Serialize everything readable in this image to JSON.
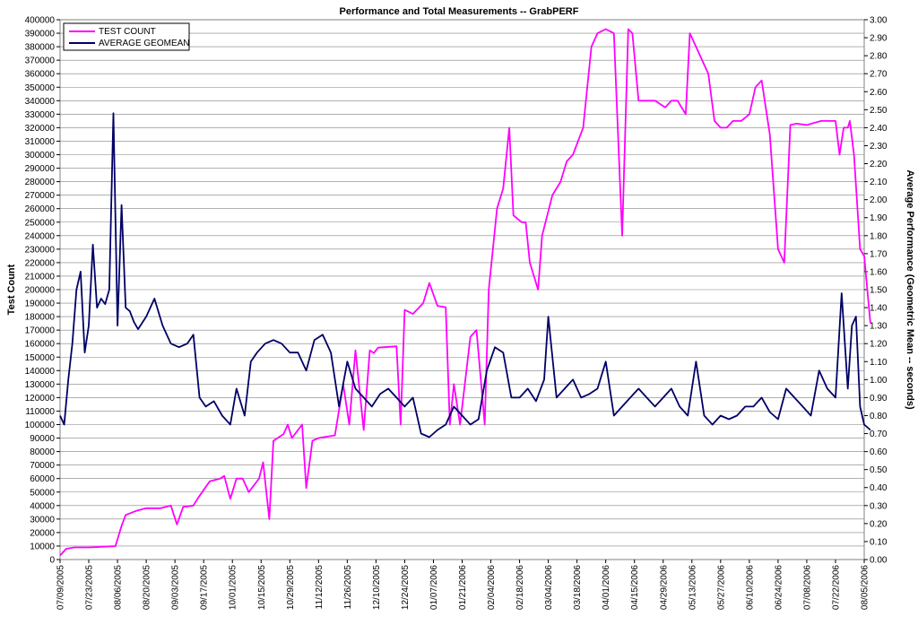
{
  "chart_data": {
    "type": "line",
    "title": "Performance and Total Measurements -- GrabPERF",
    "ylabel": "Test Count",
    "y2label": "Average Performance (Geometric Mean -- seconds)",
    "ylim": [
      0,
      400000
    ],
    "y2lim": [
      0,
      3.0
    ],
    "grid": true,
    "legend_position": "top-left",
    "y_ticks": [
      "0",
      "10000",
      "20000",
      "30000",
      "40000",
      "50000",
      "60000",
      "70000",
      "80000",
      "90000",
      "100000",
      "110000",
      "120000",
      "130000",
      "140000",
      "150000",
      "160000",
      "170000",
      "180000",
      "190000",
      "200000",
      "210000",
      "220000",
      "230000",
      "240000",
      "250000",
      "260000",
      "270000",
      "280000",
      "290000",
      "300000",
      "310000",
      "320000",
      "330000",
      "340000",
      "350000",
      "360000",
      "370000",
      "380000",
      "390000",
      "400000"
    ],
    "y2_ticks": [
      "0.00",
      "0.10",
      "0.20",
      "0.30",
      "0.40",
      "0.50",
      "0.60",
      "0.70",
      "0.80",
      "0.90",
      "1.00",
      "1.10",
      "1.20",
      "1.30",
      "1.40",
      "1.50",
      "1.60",
      "1.70",
      "1.80",
      "1.90",
      "2.00",
      "2.10",
      "2.20",
      "2.30",
      "2.40",
      "2.50",
      "2.60",
      "2.70",
      "2.80",
      "2.90",
      "3.00"
    ],
    "x_ticks": [
      "07/09/2005",
      "07/23/2005",
      "08/06/2005",
      "08/20/2005",
      "09/03/2005",
      "09/17/2005",
      "10/01/2005",
      "10/15/2005",
      "10/29/2005",
      "11/12/2005",
      "11/26/2005",
      "12/10/2005",
      "12/24/2005",
      "01/07/2006",
      "01/21/2006",
      "02/04/2006",
      "02/18/2006",
      "03/04/2006",
      "03/18/2006",
      "04/01/2006",
      "04/15/2006",
      "04/29/2006",
      "05/13/2006",
      "05/27/2006",
      "06/10/2006",
      "06/24/2006",
      "07/08/2006",
      "07/22/2006",
      "08/05/2006"
    ],
    "series": [
      {
        "name": "TEST COUNT",
        "axis": "left",
        "color": "#ff00ff",
        "x": [
          "2005-07-09",
          "2005-07-12",
          "2005-07-16",
          "2005-07-23",
          "2005-07-30",
          "2005-08-05",
          "2005-08-08",
          "2005-08-10",
          "2005-08-15",
          "2005-08-20",
          "2005-08-27",
          "2005-09-01",
          "2005-09-04",
          "2005-09-07",
          "2005-09-12",
          "2005-09-14",
          "2005-09-20",
          "2005-09-25",
          "2005-09-27",
          "2005-09-30",
          "2005-10-03",
          "2005-10-06",
          "2005-10-09",
          "2005-10-14",
          "2005-10-16",
          "2005-10-19",
          "2005-10-21",
          "2005-10-26",
          "2005-10-28",
          "2005-10-30",
          "2005-11-04",
          "2005-11-06",
          "2005-11-09",
          "2005-11-12",
          "2005-11-20",
          "2005-11-24",
          "2005-11-27",
          "2005-11-30",
          "2005-12-04",
          "2005-12-07",
          "2005-12-09",
          "2005-12-11",
          "2005-12-20",
          "2005-12-22",
          "2005-12-24",
          "2005-12-28",
          "2006-01-02",
          "2006-01-05",
          "2006-01-09",
          "2006-01-13",
          "2006-01-15",
          "2006-01-17",
          "2006-01-20",
          "2006-01-25",
          "2006-01-28",
          "2006-02-01",
          "2006-02-03",
          "2006-02-07",
          "2006-02-10",
          "2006-02-13",
          "2006-02-15",
          "2006-02-19",
          "2006-02-21",
          "2006-02-23",
          "2006-02-25",
          "2006-02-27",
          "2006-03-01",
          "2006-03-06",
          "2006-03-10",
          "2006-03-13",
          "2006-03-16",
          "2006-03-21",
          "2006-03-25",
          "2006-03-28",
          "2006-04-01",
          "2006-04-05",
          "2006-04-09",
          "2006-04-12",
          "2006-04-14",
          "2006-04-17",
          "2006-04-21",
          "2006-04-25",
          "2006-04-30",
          "2006-05-03",
          "2006-05-06",
          "2006-05-10",
          "2006-05-12",
          "2006-05-15",
          "2006-05-18",
          "2006-05-21",
          "2006-05-24",
          "2006-05-27",
          "2006-05-30",
          "2006-06-02",
          "2006-06-06",
          "2006-06-10",
          "2006-06-13",
          "2006-06-16",
          "2006-06-20",
          "2006-06-24",
          "2006-06-27",
          "2006-06-30",
          "2006-07-03",
          "2006-07-08",
          "2006-07-15",
          "2006-07-22",
          "2006-07-24",
          "2006-07-26",
          "2006-07-28",
          "2006-07-29",
          "2006-07-31",
          "2006-08-03",
          "2006-08-05",
          "2006-08-08"
        ],
        "values": [
          3000,
          8000,
          9000,
          9000,
          9500,
          10000,
          25000,
          33000,
          36000,
          38000,
          38000,
          40000,
          26000,
          39000,
          40000,
          45000,
          58000,
          60000,
          62000,
          45000,
          60000,
          60000,
          50000,
          60000,
          72000,
          30000,
          88000,
          93000,
          100000,
          90000,
          100000,
          53000,
          88000,
          90000,
          92000,
          130000,
          100000,
          155000,
          96000,
          155000,
          153000,
          157000,
          158000,
          100000,
          185000,
          182000,
          190000,
          205000,
          188000,
          187000,
          100000,
          130000,
          100000,
          165000,
          170000,
          100000,
          200000,
          260000,
          275000,
          320000,
          255000,
          250000,
          250000,
          220000,
          210000,
          200000,
          240000,
          270000,
          280000,
          295000,
          300000,
          320000,
          380000,
          390000,
          393000,
          390000,
          240000,
          393000,
          390000,
          340000,
          340000,
          340000,
          335000,
          340000,
          340000,
          330000,
          390000,
          380000,
          370000,
          360000,
          325000,
          320000,
          320000,
          325000,
          325000,
          330000,
          350000,
          355000,
          315000,
          230000,
          220000,
          322000,
          323000,
          322000,
          325000,
          325000,
          300000,
          320000,
          320000,
          325000,
          300000,
          230000,
          225000,
          175000
        ]
      },
      {
        "name": "AVERAGE GEOMEAN",
        "axis": "right",
        "color": "#000066",
        "x": [
          "2005-07-09",
          "2005-07-11",
          "2005-07-13",
          "2005-07-15",
          "2005-07-17",
          "2005-07-19",
          "2005-07-21",
          "2005-07-23",
          "2005-07-25",
          "2005-07-27",
          "2005-07-29",
          "2005-07-31",
          "2005-08-02",
          "2005-08-04",
          "2005-08-06",
          "2005-08-08",
          "2005-08-10",
          "2005-08-12",
          "2005-08-14",
          "2005-08-16",
          "2005-08-20",
          "2005-08-24",
          "2005-08-28",
          "2005-09-01",
          "2005-09-05",
          "2005-09-09",
          "2005-09-12",
          "2005-09-15",
          "2005-09-18",
          "2005-09-22",
          "2005-09-26",
          "2005-09-30",
          "2005-10-03",
          "2005-10-07",
          "2005-10-10",
          "2005-10-13",
          "2005-10-17",
          "2005-10-21",
          "2005-10-25",
          "2005-10-29",
          "2005-11-02",
          "2005-11-06",
          "2005-11-10",
          "2005-11-14",
          "2005-11-18",
          "2005-11-22",
          "2005-11-26",
          "2005-11-30",
          "2005-12-04",
          "2005-12-08",
          "2005-12-12",
          "2005-12-16",
          "2005-12-20",
          "2005-12-24",
          "2005-12-28",
          "2006-01-01",
          "2006-01-05",
          "2006-01-09",
          "2006-01-13",
          "2006-01-17",
          "2006-01-21",
          "2006-01-25",
          "2006-01-29",
          "2006-02-02",
          "2006-02-06",
          "2006-02-10",
          "2006-02-14",
          "2006-02-18",
          "2006-02-22",
          "2006-02-26",
          "2006-03-02",
          "2006-03-04",
          "2006-03-08",
          "2006-03-12",
          "2006-03-16",
          "2006-03-20",
          "2006-03-24",
          "2006-03-28",
          "2006-04-01",
          "2006-04-05",
          "2006-04-09",
          "2006-04-13",
          "2006-04-17",
          "2006-04-21",
          "2006-04-25",
          "2006-04-29",
          "2006-05-03",
          "2006-05-07",
          "2006-05-11",
          "2006-05-15",
          "2006-05-19",
          "2006-05-23",
          "2006-05-27",
          "2006-05-31",
          "2006-06-04",
          "2006-06-08",
          "2006-06-12",
          "2006-06-16",
          "2006-06-20",
          "2006-06-24",
          "2006-06-28",
          "2006-07-02",
          "2006-07-06",
          "2006-07-10",
          "2006-07-14",
          "2006-07-18",
          "2006-07-22",
          "2006-07-25",
          "2006-07-28",
          "2006-07-30",
          "2006-08-01",
          "2006-08-03",
          "2006-08-05",
          "2006-08-08"
        ],
        "values": [
          0.8,
          0.75,
          1.0,
          1.2,
          1.5,
          1.6,
          1.15,
          1.3,
          1.75,
          1.4,
          1.45,
          1.42,
          1.5,
          2.48,
          1.3,
          1.97,
          1.4,
          1.38,
          1.32,
          1.28,
          1.35,
          1.45,
          1.3,
          1.2,
          1.18,
          1.2,
          1.25,
          0.9,
          0.85,
          0.88,
          0.8,
          0.75,
          0.95,
          0.8,
          1.1,
          1.15,
          1.2,
          1.22,
          1.2,
          1.15,
          1.15,
          1.05,
          1.22,
          1.25,
          1.15,
          0.85,
          1.1,
          0.95,
          0.9,
          0.85,
          0.92,
          0.95,
          0.9,
          0.85,
          0.9,
          0.7,
          0.68,
          0.72,
          0.75,
          0.85,
          0.8,
          0.75,
          0.78,
          1.05,
          1.18,
          1.15,
          0.9,
          0.9,
          0.95,
          0.88,
          1.0,
          1.35,
          0.9,
          0.95,
          1.0,
          0.9,
          0.92,
          0.95,
          1.1,
          0.8,
          0.85,
          0.9,
          0.95,
          0.9,
          0.85,
          0.9,
          0.95,
          0.85,
          0.8,
          1.1,
          0.8,
          0.75,
          0.8,
          0.78,
          0.8,
          0.85,
          0.85,
          0.9,
          0.82,
          0.78,
          0.95,
          0.9,
          0.85,
          0.8,
          1.05,
          0.95,
          0.9,
          1.48,
          0.95,
          1.3,
          1.35,
          0.85,
          0.75,
          0.72
        ]
      }
    ]
  }
}
